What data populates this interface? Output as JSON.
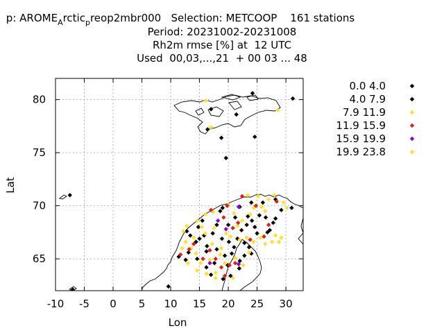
{
  "header": {
    "line1_a": "p: AROME",
    "line1_sub1": "A",
    "line1_b": "rctic",
    "line1_sub2": "p",
    "line1_c": "reop2mbr000   Selection: METCOOP    161 stations",
    "line2": "Period: 20231002-20231008",
    "line3": "Rh2m rmse [%] at  12 UTC",
    "line4": "Used  00,03,...,21  + 00 03 ... 48"
  },
  "chart_data": {
    "type": "scatter",
    "xlabel": "Lon",
    "ylabel": "Lat",
    "xlim": [
      -10,
      33
    ],
    "ylim": [
      62,
      82
    ],
    "xticks": [
      -10,
      -5,
      0,
      5,
      10,
      15,
      20,
      25,
      30
    ],
    "yticks": [
      65,
      70,
      75,
      80
    ],
    "grid": true,
    "legend_position": "right",
    "series": [
      {
        "name": "0.0 4.0",
        "color": "#000000",
        "points": [
          [
            24.2,
            80.6
          ],
          [
            24.6,
            76.5
          ],
          [
            18.8,
            76.4
          ],
          [
            19.6,
            74.5
          ],
          [
            31.2,
            80.1
          ],
          [
            29.2,
            69.6
          ],
          [
            31.0,
            69.8
          ],
          [
            24.0,
            70.3
          ],
          [
            26.0,
            70.3
          ],
          [
            28.2,
            70.6
          ],
          [
            23.4,
            69.0
          ],
          [
            24.1,
            68.6
          ],
          [
            26.5,
            68.9
          ],
          [
            27.8,
            68.4
          ],
          [
            20.0,
            68.2
          ],
          [
            18.0,
            68.2
          ],
          [
            15.5,
            68.6
          ],
          [
            17.3,
            67.4
          ],
          [
            13.4,
            67.2
          ],
          [
            14.4,
            66.6
          ],
          [
            16.3,
            66.2
          ],
          [
            18.0,
            65.9
          ],
          [
            19.4,
            65.3
          ],
          [
            20.6,
            65.5
          ],
          [
            22.0,
            64.8
          ],
          [
            23.6,
            66.1
          ],
          [
            21.6,
            66.9
          ],
          [
            22.3,
            67.7
          ],
          [
            26.8,
            67.5
          ],
          [
            20.1,
            66.6
          ],
          [
            18.9,
            66.9
          ],
          [
            21.0,
            66.1
          ],
          [
            19.9,
            64.4
          ],
          [
            17.6,
            64.6
          ],
          [
            16.2,
            64.2
          ],
          [
            20.4,
            63.4
          ],
          [
            13.1,
            65.6
          ],
          [
            14.6,
            65.0
          ],
          [
            22.8,
            65.3
          ],
          [
            11.4,
            65.2
          ],
          [
            12.6,
            64.9
          ],
          [
            15.8,
            67.2
          ],
          [
            21.2,
            68.9
          ],
          [
            18.6,
            69.5
          ]
        ]
      },
      {
        "name": "4.0 7.9",
        "color": "#000000",
        "points": [
          [
            16.4,
            77.2
          ],
          [
            21.4,
            78.6
          ],
          [
            17.0,
            79.1
          ],
          [
            -7.5,
            71.0
          ],
          [
            -7.0,
            62.1
          ],
          [
            22.0,
            69.9
          ],
          [
            19.0,
            69.8
          ],
          [
            25.4,
            69.1
          ],
          [
            27.2,
            67.7
          ],
          [
            28.2,
            68.8
          ],
          [
            23.2,
            68.2
          ],
          [
            25.0,
            67.4
          ],
          [
            14.8,
            68.0
          ],
          [
            12.8,
            67.6
          ],
          [
            16.2,
            65.7
          ],
          [
            22.8,
            66.5
          ],
          [
            24.0,
            65.5
          ],
          [
            17.0,
            63.5
          ],
          [
            21.9,
            64.1
          ],
          [
            9.6,
            62.4
          ],
          [
            19.1,
            63.1
          ],
          [
            24.6,
            68.0
          ],
          [
            15.0,
            66.9
          ]
        ]
      },
      {
        "name": "7.9 11.9",
        "color": "#ffe12b",
        "points": [
          [
            16.1,
            79.9
          ],
          [
            28.6,
            79.0
          ],
          [
            17.0,
            77.4
          ],
          [
            23.4,
            71.0
          ],
          [
            25.2,
            70.9
          ],
          [
            28.0,
            71.0
          ],
          [
            29.6,
            70.3
          ],
          [
            30.2,
            69.8
          ],
          [
            24.4,
            69.8
          ],
          [
            26.4,
            69.5
          ],
          [
            27.0,
            70.6
          ],
          [
            21.0,
            69.3
          ],
          [
            20.0,
            70.1
          ],
          [
            17.4,
            69.4
          ],
          [
            16.0,
            69.2
          ],
          [
            14.6,
            68.6
          ],
          [
            12.8,
            68.1
          ],
          [
            14.0,
            67.0
          ],
          [
            12.2,
            67.6
          ],
          [
            12.6,
            66.6
          ],
          [
            13.6,
            66.0
          ],
          [
            12.0,
            66.0
          ],
          [
            14.4,
            65.5
          ],
          [
            15.2,
            64.6
          ],
          [
            14.6,
            63.9
          ],
          [
            16.2,
            63.6
          ],
          [
            17.8,
            63.7
          ],
          [
            19.4,
            64.6
          ],
          [
            18.6,
            65.4
          ],
          [
            17.2,
            66.4
          ],
          [
            16.0,
            67.4
          ],
          [
            19.6,
            67.4
          ],
          [
            21.6,
            68.1
          ],
          [
            22.4,
            68.6
          ],
          [
            23.8,
            69.2
          ],
          [
            25.6,
            67.0
          ],
          [
            26.4,
            66.4
          ],
          [
            27.6,
            66.6
          ],
          [
            28.2,
            67.2
          ],
          [
            29.2,
            67.0
          ],
          [
            28.8,
            66.6
          ],
          [
            24.4,
            66.6
          ],
          [
            23.2,
            67.0
          ],
          [
            22.0,
            66.8
          ],
          [
            20.4,
            67.1
          ],
          [
            18.8,
            66.0
          ],
          [
            16.8,
            64.9
          ],
          [
            21.2,
            65.1
          ],
          [
            22.6,
            64.4
          ],
          [
            20.8,
            63.2
          ],
          [
            17.8,
            63.2
          ],
          [
            23.6,
            65.6
          ],
          [
            15.4,
            68.0
          ],
          [
            13.0,
            64.6
          ],
          [
            17.5,
            67.9
          ],
          [
            25.8,
            69.9
          ]
        ]
      },
      {
        "name": "11.9 15.9",
        "color": "#e51e10",
        "points": [
          [
            22.4,
            70.9
          ],
          [
            28.4,
            70.4
          ],
          [
            19.8,
            70.0
          ],
          [
            17.0,
            69.6
          ],
          [
            19.2,
            68.9
          ],
          [
            21.7,
            68.4
          ],
          [
            27.0,
            68.2
          ],
          [
            26.2,
            67.1
          ],
          [
            13.2,
            65.9
          ],
          [
            14.0,
            66.4
          ],
          [
            15.6,
            65.0
          ],
          [
            17.8,
            65.0
          ],
          [
            18.8,
            64.2
          ],
          [
            20.2,
            64.4
          ],
          [
            19.4,
            63.4
          ],
          [
            21.2,
            64.6
          ],
          [
            23.8,
            66.8
          ],
          [
            11.7,
            65.4
          ],
          [
            16.8,
            65.8
          ],
          [
            20.8,
            67.9
          ],
          [
            24.8,
            70.0
          ]
        ]
      },
      {
        "name": "15.9 19.9",
        "color": "#9400d3",
        "points": [
          [
            21.8,
            69.9
          ],
          [
            18.2,
            68.6
          ],
          [
            19.6,
            67.8
          ],
          [
            16.8,
            64.6
          ],
          [
            21.8,
            64.5
          ]
        ]
      },
      {
        "name": "19.9 23.8",
        "color": "#ffe12b",
        "points": []
      }
    ]
  }
}
